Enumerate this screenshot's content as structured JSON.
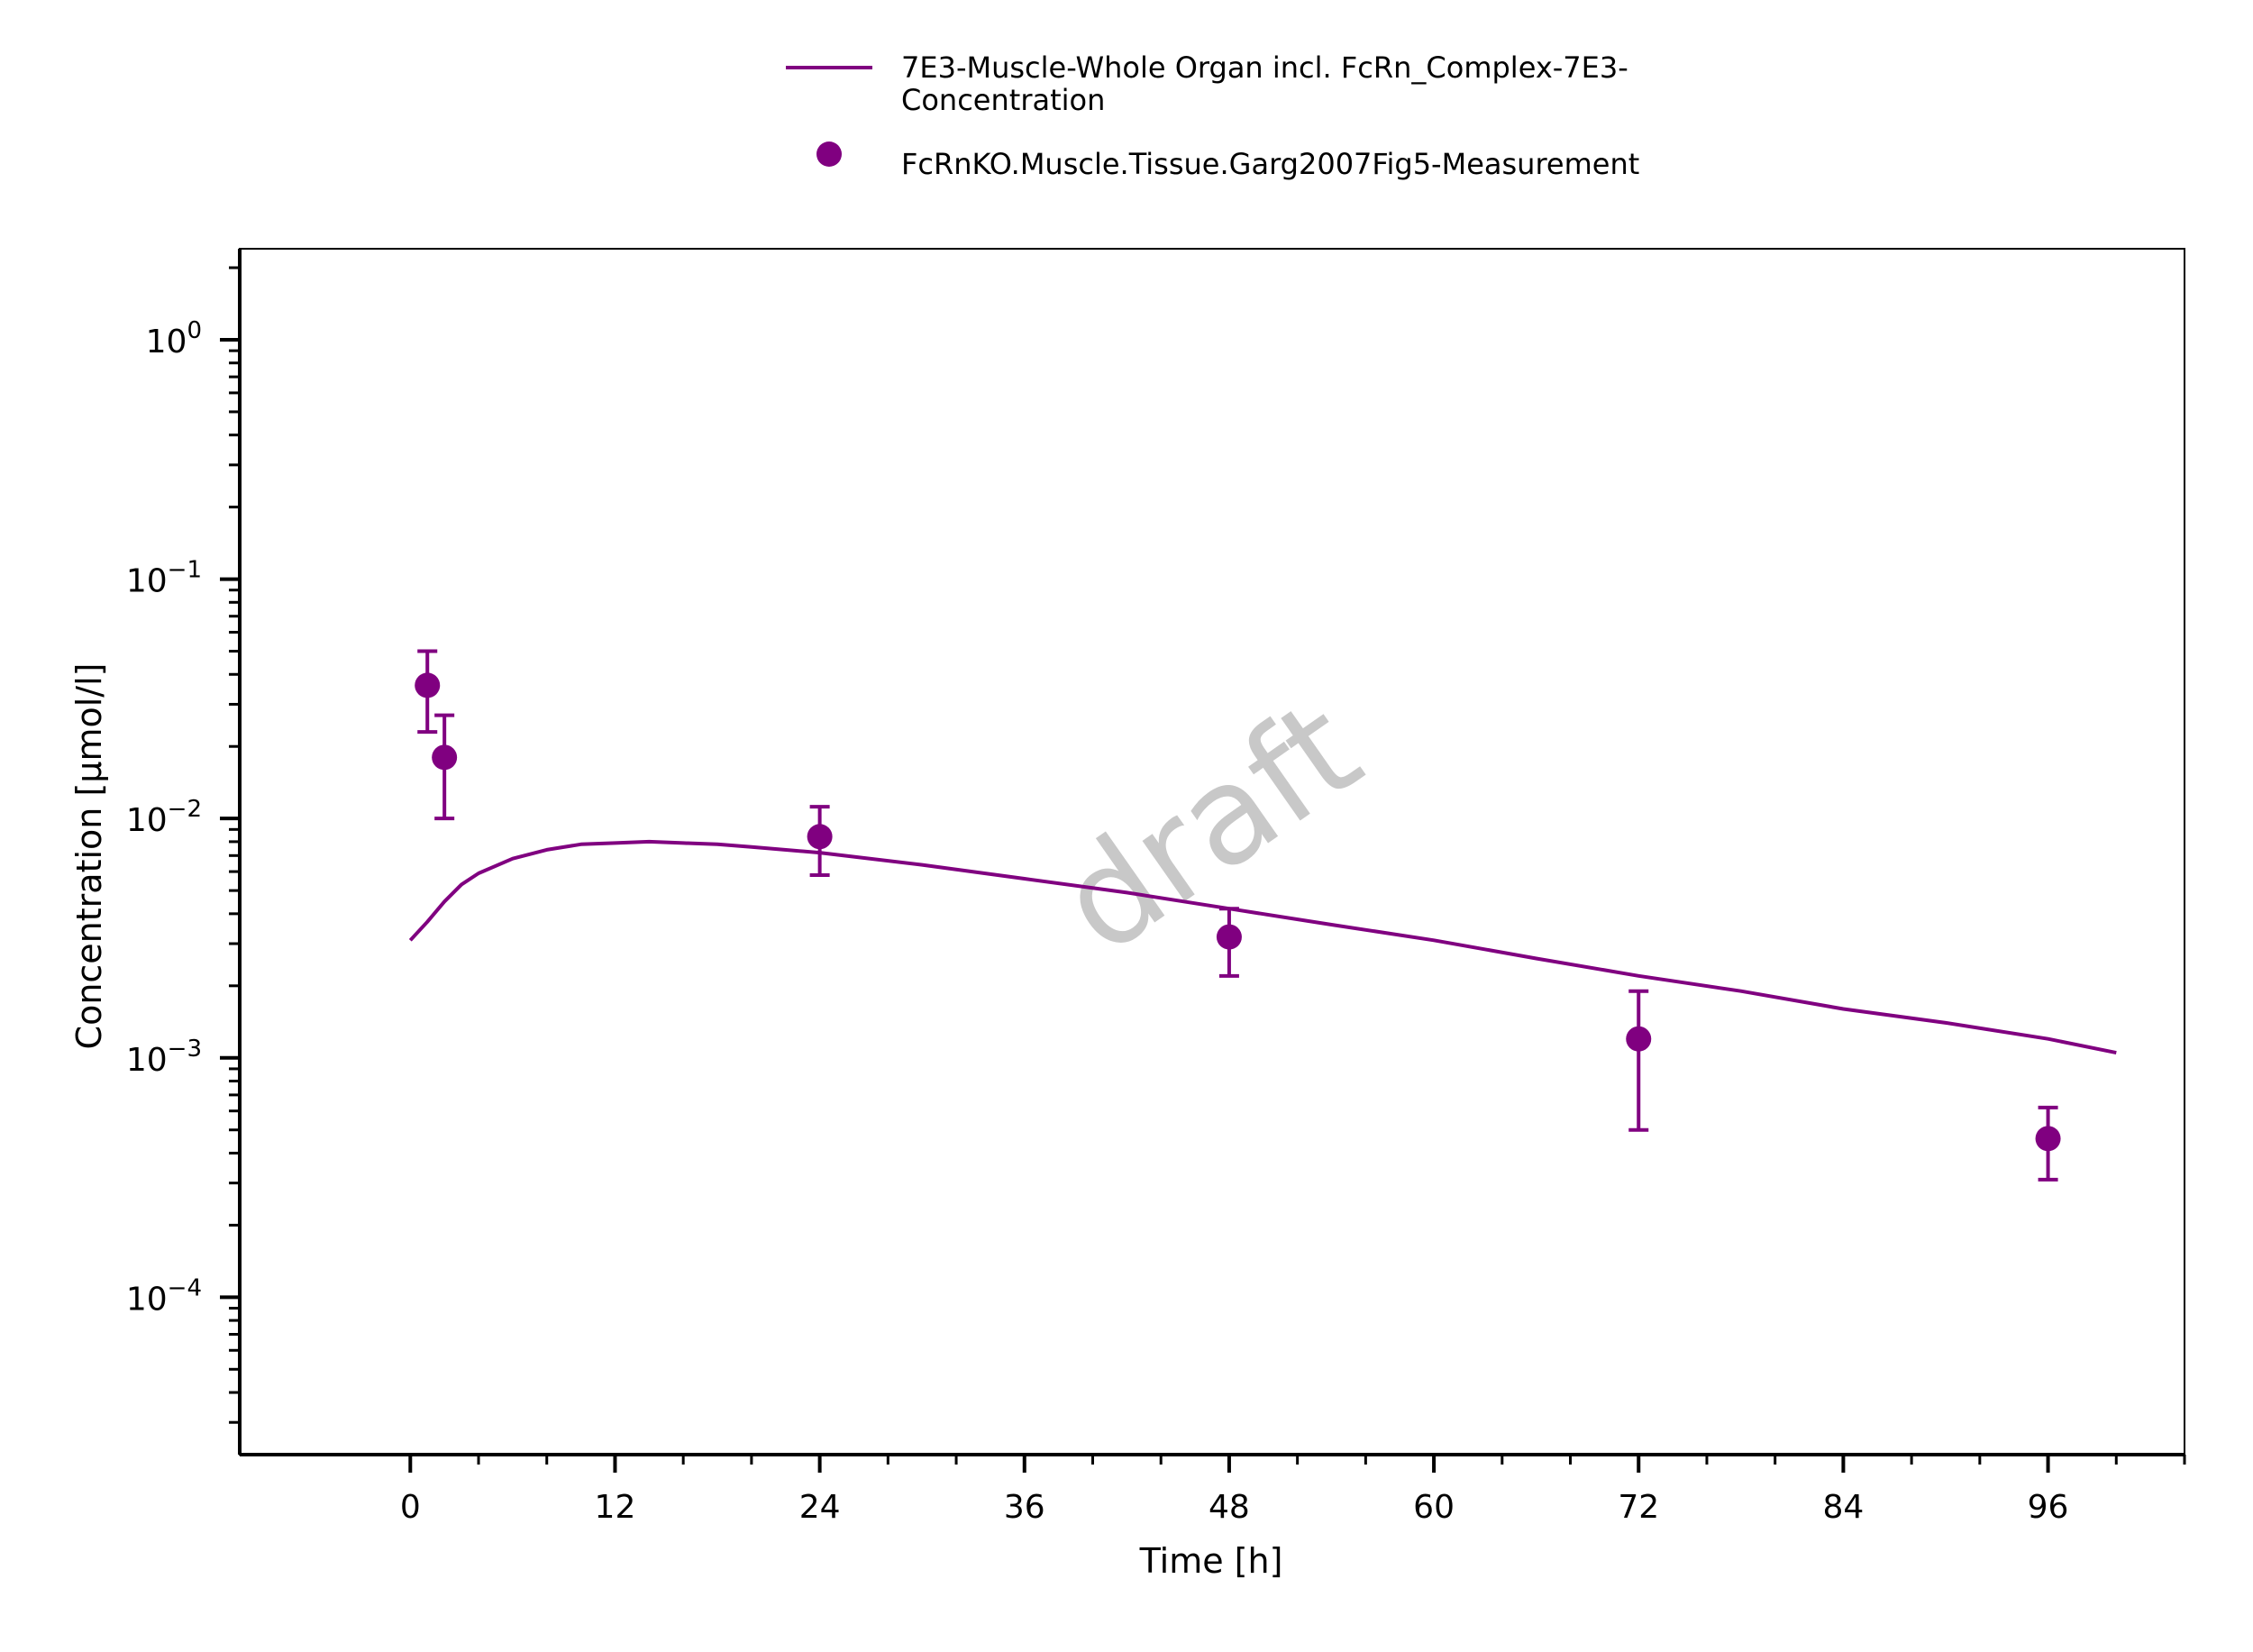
{
  "chart_data": {
    "type": "scatter",
    "xlabel": "Time [h]",
    "ylabel": "Concentration [µmol/l]",
    "y_scale": "log",
    "xlim": [
      -10,
      104
    ],
    "ylim": [
      2.2e-05,
      2.4
    ],
    "x_ticks": [
      0,
      12,
      24,
      36,
      48,
      60,
      72,
      84,
      96
    ],
    "x_tick_labels": [
      "0",
      "12",
      "24",
      "36",
      "48",
      "60",
      "72",
      "84",
      "96"
    ],
    "y_ticks": [
      1,
      0.1,
      0.01,
      0.001,
      0.0001
    ],
    "y_tick_labels": [
      {
        "base": "10",
        "exp": "0"
      },
      {
        "base": "10",
        "exp": "−1"
      },
      {
        "base": "10",
        "exp": "−2"
      },
      {
        "base": "10",
        "exp": "−3"
      },
      {
        "base": "10",
        "exp": "−4"
      }
    ],
    "grid": false,
    "legend_position": "top-center",
    "watermark": "draft",
    "color": "#800080",
    "series": [
      {
        "name_lines": [
          "7E3-Muscle-Whole Organ incl. FcRn_Complex-7E3-",
          "Concentration"
        ],
        "kind": "line",
        "x": [
          0,
          1,
          2,
          3,
          4,
          6,
          8,
          10,
          12,
          14,
          16,
          18,
          20,
          24,
          30,
          36,
          42,
          48,
          54,
          60,
          66,
          72,
          78,
          84,
          90,
          96,
          100
        ],
        "y": [
          0.0031,
          0.0037,
          0.0045,
          0.0053,
          0.0059,
          0.0068,
          0.0074,
          0.0078,
          0.0079,
          0.008,
          0.0079,
          0.0078,
          0.0076,
          0.0072,
          0.0064,
          0.0056,
          0.0049,
          0.0042,
          0.0036,
          0.0031,
          0.0026,
          0.0022,
          0.0019,
          0.0016,
          0.0014,
          0.0012,
          0.00105
        ]
      },
      {
        "name": "FcRnKO.Muscle.Tissue.Garg2007Fig5-Measurement",
        "kind": "scatter",
        "points": [
          {
            "x": 1,
            "y": 0.036,
            "lo": 0.023,
            "hi": 0.05
          },
          {
            "x": 2,
            "y": 0.018,
            "lo": 0.01,
            "hi": 0.027
          },
          {
            "x": 24,
            "y": 0.0084,
            "lo": 0.0058,
            "hi": 0.0112
          },
          {
            "x": 48,
            "y": 0.0032,
            "lo": 0.0022,
            "hi": 0.0042
          },
          {
            "x": 72,
            "y": 0.0012,
            "lo": 0.0005,
            "hi": 0.0019
          },
          {
            "x": 96,
            "y": 0.00046,
            "lo": 0.00031,
            "hi": 0.00062
          }
        ]
      }
    ]
  }
}
